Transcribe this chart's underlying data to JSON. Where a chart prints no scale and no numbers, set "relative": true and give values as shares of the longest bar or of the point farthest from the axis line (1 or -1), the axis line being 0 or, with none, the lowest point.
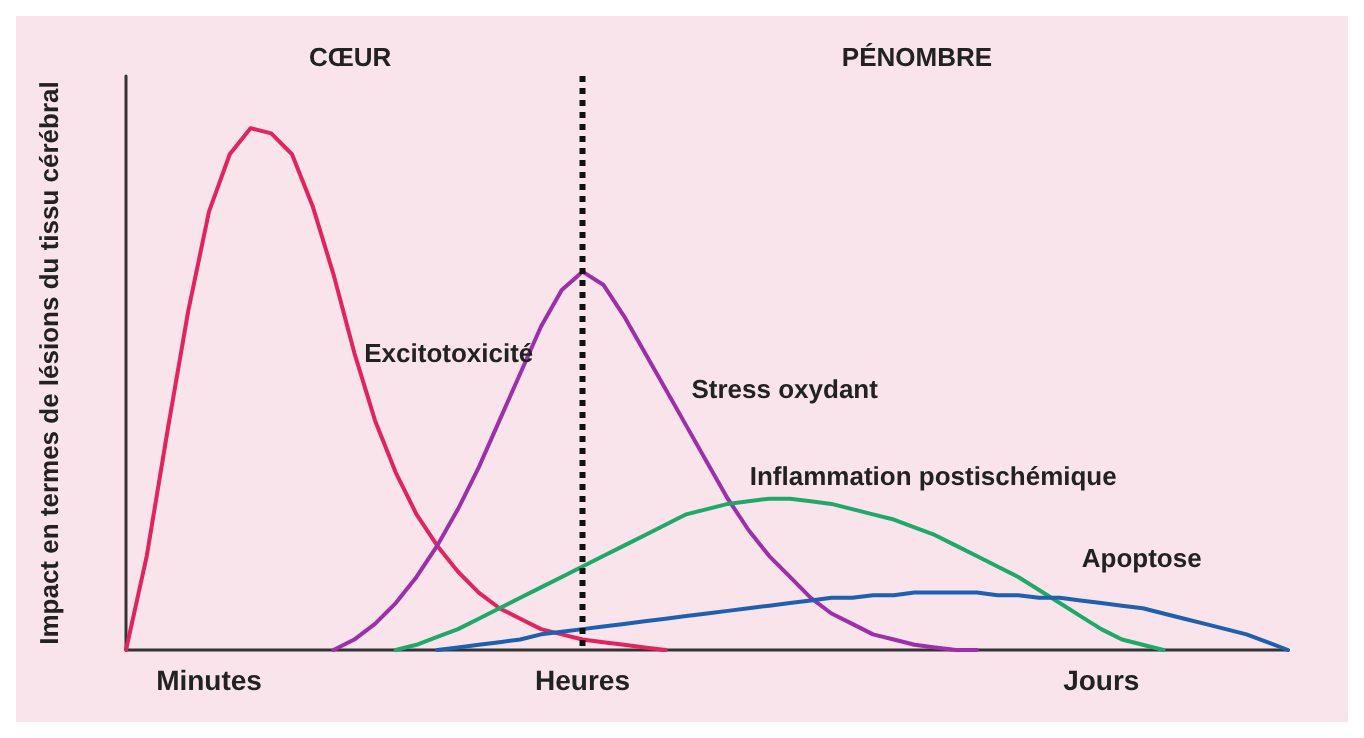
{
  "chart_data": {
    "type": "line",
    "relative": true,
    "ylabel": "Impact en termes de lésions du tissu cérébral",
    "annotations": [
      "CŒUR",
      "PÉNOMBRE"
    ],
    "marker": "none",
    "line_style": "solid",
    "categories": [
      null,
      null,
      null,
      null,
      "Minutes",
      null,
      null,
      null,
      null,
      null,
      null,
      null,
      null,
      null,
      null,
      null,
      null,
      null,
      null,
      null,
      null,
      null,
      "Heures",
      null,
      null,
      null,
      null,
      null,
      null,
      null,
      null,
      null,
      null,
      null,
      null,
      null,
      null,
      null,
      null,
      null,
      null,
      null,
      null,
      null,
      null,
      null,
      null,
      "Jours",
      null,
      null,
      null,
      null,
      null,
      null,
      null,
      null,
      null
    ],
    "ref_lines": [
      {
        "axis": "x",
        "value": "Heures",
        "color": "#111111",
        "line_style": "dotted"
      }
    ],
    "series": [
      {
        "name": "Excitotoxicité",
        "color": "#e0245e",
        "values": [
          0,
          0.18,
          0.42,
          0.65,
          0.84,
          0.95,
          1,
          0.99,
          0.95,
          0.85,
          0.72,
          0.57,
          0.44,
          0.34,
          0.26,
          0.2,
          0.15,
          0.11,
          0.08,
          0.06,
          0.04,
          0.03,
          0.02,
          0.015,
          0.01,
          0.005,
          0,
          null,
          null,
          null,
          null,
          null,
          null,
          null,
          null,
          null,
          null,
          null,
          null,
          null,
          null,
          null,
          null,
          null,
          null,
          null,
          null,
          null,
          null,
          null,
          null,
          null,
          null,
          null,
          null,
          null,
          null
        ]
      },
      {
        "name": "Stress oxydant",
        "color": "#9b30a8",
        "values": [
          null,
          null,
          null,
          null,
          null,
          null,
          null,
          null,
          null,
          null,
          0,
          0.02,
          0.05,
          0.09,
          0.14,
          0.2,
          0.27,
          0.35,
          0.44,
          0.53,
          0.62,
          0.69,
          0.725,
          0.7,
          0.64,
          0.57,
          0.5,
          0.43,
          0.36,
          0.29,
          0.23,
          0.18,
          0.14,
          0.1,
          0.07,
          0.05,
          0.03,
          0.02,
          0.01,
          0.005,
          0,
          0,
          null,
          null,
          null,
          null,
          null,
          null,
          null,
          null,
          null,
          null,
          null,
          null,
          null,
          null,
          null
        ]
      },
      {
        "name": "Inflammation postischémique",
        "color": "#1fa86a",
        "values": [
          null,
          null,
          null,
          null,
          null,
          null,
          null,
          null,
          null,
          null,
          null,
          null,
          null,
          0,
          0.01,
          0.025,
          0.04,
          0.06,
          0.08,
          0.1,
          0.12,
          0.14,
          0.16,
          0.18,
          0.2,
          0.22,
          0.24,
          0.26,
          0.27,
          0.28,
          0.285,
          0.29,
          0.29,
          0.285,
          0.28,
          0.27,
          0.26,
          0.25,
          0.235,
          0.22,
          0.2,
          0.18,
          0.16,
          0.14,
          0.115,
          0.09,
          0.065,
          0.04,
          0.02,
          0.01,
          0,
          null,
          null,
          null,
          null,
          null,
          null
        ]
      },
      {
        "name": "Apoptose",
        "color": "#1f5fb0",
        "values": [
          null,
          null,
          null,
          null,
          null,
          null,
          null,
          null,
          null,
          null,
          null,
          null,
          null,
          null,
          null,
          0,
          0.005,
          0.01,
          0.015,
          0.02,
          0.03,
          0.035,
          0.04,
          0.045,
          0.05,
          0.055,
          0.06,
          0.065,
          0.07,
          0.075,
          0.08,
          0.085,
          0.09,
          0.095,
          0.1,
          0.1,
          0.105,
          0.105,
          0.11,
          0.11,
          0.11,
          0.11,
          0.105,
          0.105,
          0.1,
          0.1,
          0.095,
          0.09,
          0.085,
          0.08,
          0.07,
          0.06,
          0.05,
          0.04,
          0.03,
          0.015,
          0
        ]
      }
    ]
  }
}
